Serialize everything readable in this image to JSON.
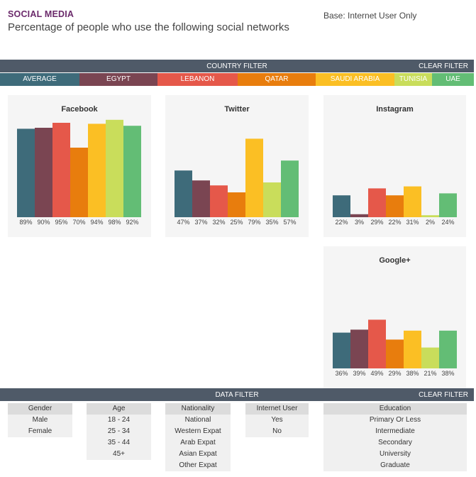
{
  "header": {
    "title": "SOCIAL MEDIA",
    "subtitle": "Percentage of people who use the following social networks",
    "base": "Base: Internet User Only"
  },
  "country_filter": {
    "title": "COUNTRY FILTER",
    "clear_label": "CLEAR FILTER",
    "countries": [
      {
        "label": "AVERAGE",
        "color": "#3e6b7a"
      },
      {
        "label": "EGYPT",
        "color": "#7a4552"
      },
      {
        "label": "LEBANON",
        "color": "#e5584a"
      },
      {
        "label": "QATAR",
        "color": "#e87d0d"
      },
      {
        "label": "SAUDI ARABIA",
        "color": "#fbbf24"
      },
      {
        "label": "TUNISIA",
        "color": "#c9dd5b"
      },
      {
        "label": "UAE",
        "color": "#63bd75"
      }
    ]
  },
  "chart_data": [
    {
      "type": "bar",
      "title": "Facebook",
      "categories": [
        "AVERAGE",
        "EGYPT",
        "LEBANON",
        "QATAR",
        "SAUDI ARABIA",
        "TUNISIA",
        "UAE"
      ],
      "values": [
        89,
        90,
        95,
        70,
        94,
        98,
        92
      ],
      "labels": [
        "89%",
        "90%",
        "95%",
        "70%",
        "94%",
        "98%",
        "92%"
      ],
      "ylim": [
        0,
        100
      ]
    },
    {
      "type": "bar",
      "title": "Twitter",
      "categories": [
        "AVERAGE",
        "EGYPT",
        "LEBANON",
        "QATAR",
        "SAUDI ARABIA",
        "TUNISIA",
        "UAE"
      ],
      "values": [
        47,
        37,
        32,
        25,
        79,
        35,
        57
      ],
      "labels": [
        "47%",
        "37%",
        "32%",
        "25%",
        "79%",
        "35%",
        "57%"
      ],
      "ylim": [
        0,
        100
      ]
    },
    {
      "type": "bar",
      "title": "Instagram",
      "categories": [
        "AVERAGE",
        "EGYPT",
        "LEBANON",
        "QATAR",
        "SAUDI ARABIA",
        "TUNISIA",
        "UAE"
      ],
      "values": [
        22,
        3,
        29,
        22,
        31,
        2,
        24
      ],
      "labels": [
        "22%",
        "3%",
        "29%",
        "22%",
        "31%",
        "2%",
        "24%"
      ],
      "ylim": [
        0,
        100
      ]
    },
    {
      "type": "bar",
      "title": "Google+",
      "categories": [
        "AVERAGE",
        "EGYPT",
        "LEBANON",
        "QATAR",
        "SAUDI ARABIA",
        "TUNISIA",
        "UAE"
      ],
      "values": [
        36,
        39,
        49,
        29,
        38,
        21,
        38
      ],
      "labels": [
        "36%",
        "39%",
        "49%",
        "29%",
        "38%",
        "21%",
        "38%"
      ],
      "ylim": [
        0,
        100
      ]
    }
  ],
  "data_filter": {
    "title": "DATA FILTER",
    "clear_label": "CLEAR FILTER",
    "groups": [
      {
        "header": "Gender",
        "items": [
          "Male",
          "Female"
        ]
      },
      {
        "header": "Age",
        "items": [
          "18 - 24",
          "25 - 34",
          "35 - 44",
          "45+"
        ]
      },
      {
        "header": "Nationality",
        "items": [
          "National",
          "Western Expat",
          "Arab Expat",
          "Asian Expat",
          "Other Expat"
        ]
      },
      {
        "header": "Internet User",
        "items": [
          "Yes",
          "No"
        ]
      },
      {
        "header": "Education",
        "items": [
          "Primary Or Less",
          "Intermediate",
          "Secondary",
          "University",
          "Graduate"
        ]
      }
    ]
  }
}
